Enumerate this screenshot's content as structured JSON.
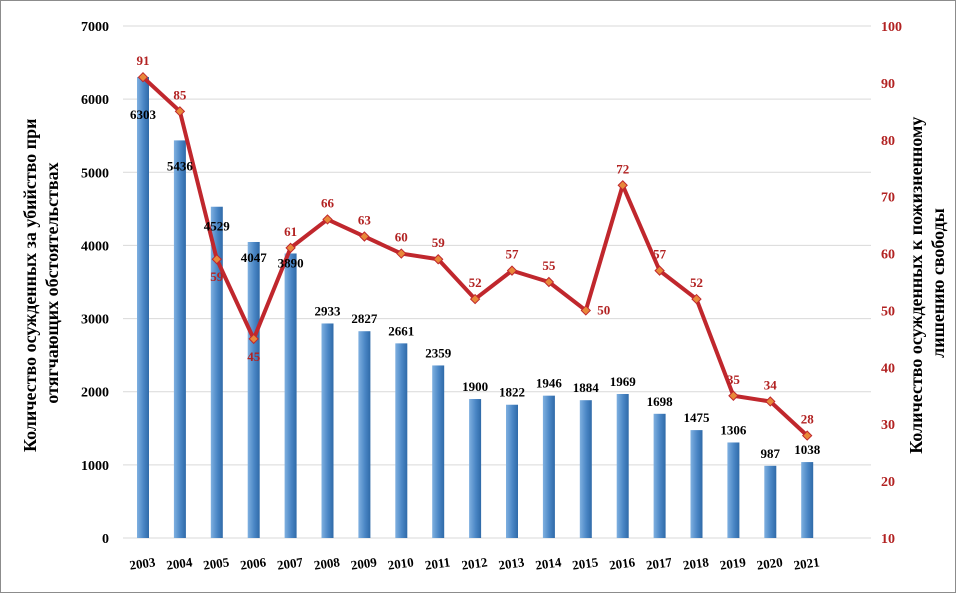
{
  "chart_data": {
    "type": "bar+line",
    "categories": [
      "2003",
      "2004",
      "2005",
      "2006",
      "2007",
      "2008",
      "2009",
      "2010",
      "2011",
      "2012",
      "2013",
      "2014",
      "2015",
      "2016",
      "2017",
      "2018",
      "2019",
      "2020",
      "2021"
    ],
    "series": [
      {
        "type": "bar",
        "axis": "left",
        "color": "#4a86c5",
        "values": [
          6303,
          5436,
          4529,
          4047,
          3890,
          2933,
          2827,
          2661,
          2359,
          1900,
          1822,
          1946,
          1884,
          1969,
          1698,
          1475,
          1306,
          987,
          1038
        ]
      },
      {
        "type": "line",
        "axis": "right",
        "color": "#c0272d",
        "values": [
          91,
          85,
          59,
          45,
          61,
          66,
          63,
          60,
          59,
          52,
          57,
          55,
          50,
          72,
          57,
          52,
          35,
          34,
          28
        ]
      }
    ],
    "ylabel_left": "Количество осужденных за убийство при отягчающих обстоятельствах",
    "ylabel_right": "Количество осужденных к пожизненному лишению свободы",
    "ylim_left": [
      0,
      7000
    ],
    "yticks_left": [
      "0",
      "1000",
      "2000",
      "3000",
      "4000",
      "5000",
      "6000",
      "7000"
    ],
    "ylim_right": [
      10,
      100
    ],
    "yticks_right": [
      "10",
      "20",
      "30",
      "40",
      "50",
      "60",
      "70",
      "80",
      "90",
      "100"
    ],
    "grid": "horizontal",
    "legend": "none"
  }
}
